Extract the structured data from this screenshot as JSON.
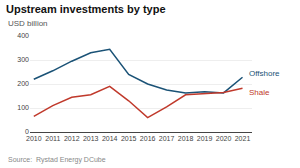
{
  "chart_data": {
    "type": "line",
    "title": "Upstream investments by type",
    "subtitle": "USD billion",
    "source": "Source:  Rystad Energy DCube",
    "x": [
      2010,
      2011,
      2012,
      2013,
      2014,
      2015,
      2016,
      2017,
      2018,
      2019,
      2020,
      2021
    ],
    "series": [
      {
        "name": "Offshore",
        "color": "#1a5276",
        "values": [
          220,
          255,
          295,
          330,
          345,
          240,
          200,
          175,
          163,
          168,
          163,
          228
        ]
      },
      {
        "name": "Shale",
        "color": "#c0392b",
        "values": [
          65,
          110,
          145,
          155,
          190,
          130,
          60,
          105,
          155,
          160,
          165,
          182
        ]
      }
    ],
    "xlim": [
      2009.8,
      2021.5
    ],
    "xticks": [
      2010,
      2011,
      2012,
      2013,
      2014,
      2015,
      2016,
      2017,
      2018,
      2019,
      2020,
      2021
    ],
    "ylim": [
      0,
      400
    ],
    "yticks": [
      0,
      100,
      200,
      300,
      400
    ],
    "grid": true
  }
}
